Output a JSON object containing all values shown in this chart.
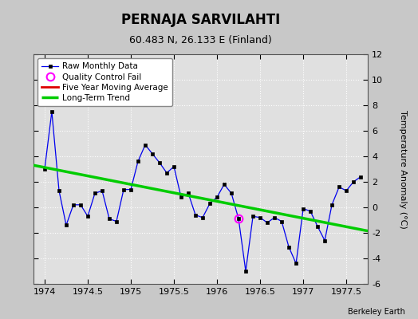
{
  "title": "PERNAJA SARVILAHTI",
  "subtitle": "60.483 N, 26.133 E (Finland)",
  "ylabel": "Temperature Anomaly (°C)",
  "attribution": "Berkeley Earth",
  "xlim": [
    1973.87,
    1977.75
  ],
  "ylim": [
    -6,
    12
  ],
  "yticks": [
    -6,
    -4,
    -2,
    0,
    2,
    4,
    6,
    8,
    10,
    12
  ],
  "xticks": [
    1974,
    1974.5,
    1975,
    1975.5,
    1976,
    1976.5,
    1977,
    1977.5
  ],
  "raw_x": [
    1974.0,
    1974.083,
    1974.167,
    1974.25,
    1974.333,
    1974.417,
    1974.5,
    1974.583,
    1974.667,
    1974.75,
    1974.833,
    1974.917,
    1975.0,
    1975.083,
    1975.167,
    1975.25,
    1975.333,
    1975.417,
    1975.5,
    1975.583,
    1975.667,
    1975.75,
    1975.833,
    1975.917,
    1976.0,
    1976.083,
    1976.167,
    1976.25,
    1976.333,
    1976.417,
    1976.5,
    1976.583,
    1976.667,
    1976.75,
    1976.833,
    1976.917,
    1977.0,
    1977.083,
    1977.167,
    1977.25,
    1977.333,
    1977.417,
    1977.5,
    1977.583,
    1977.667
  ],
  "raw_y": [
    3.0,
    7.5,
    1.3,
    -1.4,
    0.2,
    0.2,
    -0.7,
    1.1,
    1.3,
    -0.9,
    -1.1,
    1.4,
    1.4,
    3.6,
    4.9,
    4.2,
    3.5,
    2.7,
    3.2,
    0.8,
    1.1,
    -0.6,
    -0.8,
    0.3,
    0.8,
    1.8,
    1.1,
    -0.9,
    -5.0,
    -0.7,
    -0.8,
    -1.2,
    -0.8,
    -1.1,
    -3.1,
    -4.4,
    -0.1,
    -0.3,
    -1.5,
    -2.6,
    0.2,
    1.6,
    1.3,
    2.0,
    2.4
  ],
  "qc_fail_x": [
    1976.25
  ],
  "qc_fail_y": [
    -0.9
  ],
  "trend_x": [
    1973.87,
    1977.75
  ],
  "trend_y": [
    3.3,
    -1.85
  ],
  "bg_color": "#c8c8c8",
  "plot_bg_color": "#e0e0e0",
  "raw_line_color": "#0000ee",
  "raw_marker_color": "#000000",
  "qc_marker_color": "#ff00ff",
  "trend_color": "#00cc00",
  "moving_avg_color": "#dd0000",
  "grid_color": "#ffffff",
  "title_color": "#000000",
  "legend_bg": "#ffffff"
}
